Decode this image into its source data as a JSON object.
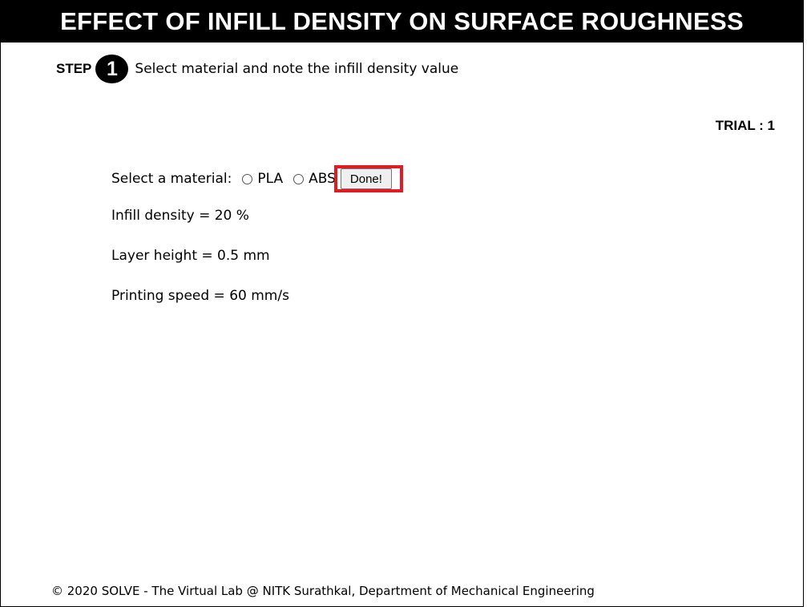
{
  "header": {
    "title": "EFFECT OF INFILL DENSITY ON SURFACE ROUGHNESS"
  },
  "step": {
    "label": "STEP",
    "number": "1",
    "instruction": "Select material and note the infill density value"
  },
  "trial": {
    "text": "TRIAL : 1"
  },
  "material": {
    "prompt": "Select a material:",
    "options": [
      "PLA",
      "ABS"
    ],
    "done_label": "Done!"
  },
  "parameters": {
    "infill_density": "Infill density = 20 %",
    "layer_height": "Layer height = 0.5 mm",
    "printing_speed": "Printing speed = 60 mm/s"
  },
  "footer": {
    "text": "© 2020 SOLVE - The Virtual Lab @ NITK Surathkal, Department of Mechanical Engineering"
  },
  "colors": {
    "header_bg": "#000000",
    "header_text": "#ffffff",
    "highlight": "#e01b24"
  }
}
